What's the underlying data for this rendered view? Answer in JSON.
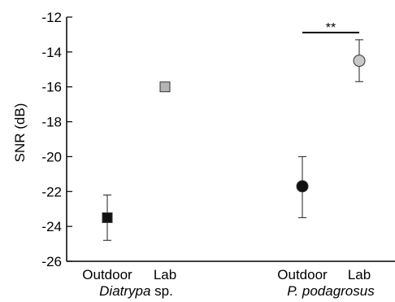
{
  "chart_data": {
    "type": "scatter",
    "title": "",
    "xlabel": "",
    "ylabel": "SNR (dB)",
    "ylim": [
      -26,
      -12
    ],
    "yticks": [
      -12,
      -14,
      -16,
      -18,
      -20,
      -22,
      -24,
      -26
    ],
    "grid": false,
    "legend": "none",
    "categories": [
      "Outdoor",
      "Lab",
      "Outdoor",
      "Lab"
    ],
    "groups": [
      {
        "label_italic": "Diatrypa",
        "label_suffix": " sp.",
        "categories": [
          "Outdoor",
          "Lab"
        ]
      },
      {
        "label_italic": "P. podagrosus",
        "label_suffix": "",
        "categories": [
          "Outdoor",
          "Lab"
        ]
      }
    ],
    "points": [
      {
        "group": "Diatrypa sp.",
        "category": "Outdoor",
        "y": -23.5,
        "yerr_low": -24.8,
        "yerr_high": -22.2,
        "marker": "square",
        "color": "#111111"
      },
      {
        "group": "Diatrypa sp.",
        "category": "Lab",
        "y": -16.0,
        "yerr_low": null,
        "yerr_high": null,
        "marker": "square",
        "color": "#b4b4b4"
      },
      {
        "group": "P. podagrosus",
        "category": "Outdoor",
        "y": -21.7,
        "yerr_low": -23.5,
        "yerr_high": -20.0,
        "marker": "circle",
        "color": "#111111"
      },
      {
        "group": "P. podagrosus",
        "category": "Lab",
        "y": -14.5,
        "yerr_low": -15.7,
        "yerr_high": -13.3,
        "marker": "circle",
        "color": "#c8c8c8"
      }
    ],
    "annotations": [
      {
        "text": "**",
        "between": [
          "P. podagrosus Outdoor",
          "P. podagrosus Lab"
        ]
      }
    ]
  }
}
